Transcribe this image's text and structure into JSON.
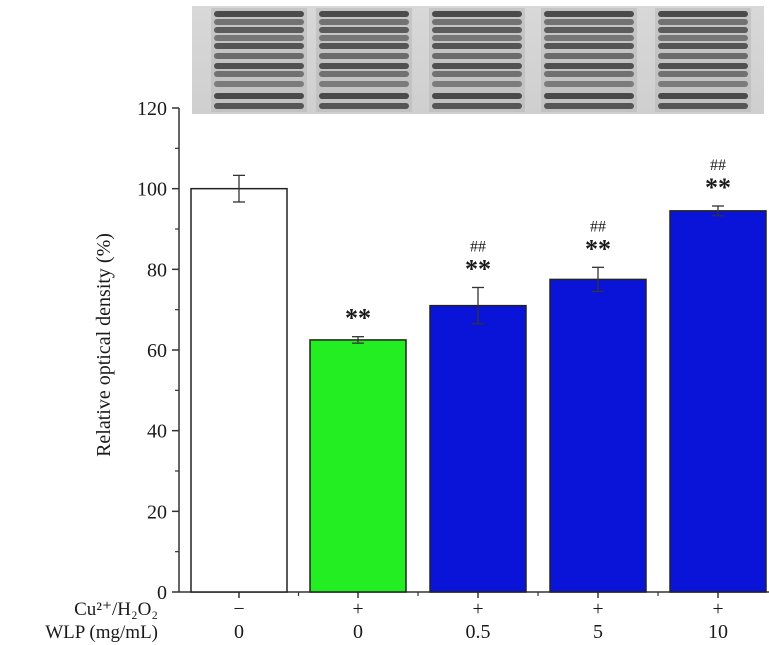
{
  "chart_data": {
    "type": "bar",
    "ylabel": "Relative optical density (%)",
    "ylim": [
      0,
      120
    ],
    "yticks": [
      0,
      20,
      40,
      60,
      80,
      100,
      120
    ],
    "grid": false,
    "conditions": [
      {
        "label": "Cu²⁺/H₂O₂",
        "values": [
          "−",
          "+",
          "+",
          "+",
          "+"
        ]
      },
      {
        "label": "WLP (mg/mL)",
        "values": [
          "0",
          "0",
          "0.5",
          "5",
          "10"
        ]
      }
    ],
    "bars": [
      {
        "value": 100,
        "error": 3.3,
        "color": "#ffffff",
        "annotations": []
      },
      {
        "value": 62.5,
        "error": 0.8,
        "color": "#22ee22",
        "annotations": [
          "**"
        ]
      },
      {
        "value": 71,
        "error": 4.5,
        "color": "#0a14d8",
        "annotations": [
          "**",
          "##"
        ]
      },
      {
        "value": 77.5,
        "error": 3.0,
        "color": "#0a14d8",
        "annotations": [
          "**",
          "##"
        ]
      },
      {
        "value": 94.5,
        "error": 1.2,
        "color": "#0a14d8",
        "annotations": [
          "**",
          "##"
        ]
      }
    ]
  },
  "gel_image": {
    "lanes": 5
  }
}
